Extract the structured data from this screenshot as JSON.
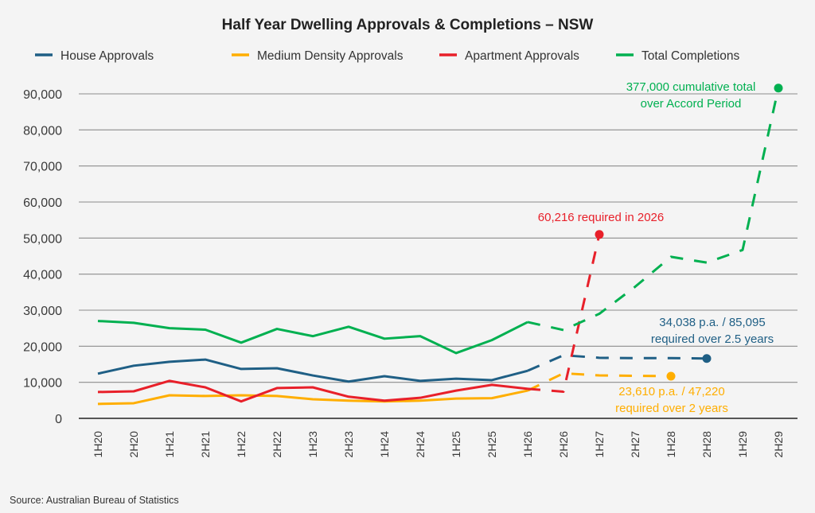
{
  "chart_data": {
    "type": "line",
    "title": "Half Year Dwelling Approvals & Completions – NSW",
    "xlabel": "",
    "ylabel": "",
    "ylim": [
      0,
      90000
    ],
    "yticks": [
      0,
      10000,
      20000,
      30000,
      40000,
      50000,
      60000,
      70000,
      80000,
      90000
    ],
    "ytick_labels": [
      "0",
      "10,000",
      "20,000",
      "30,000",
      "40,000",
      "50,000",
      "60,000",
      "70,000",
      "80,000",
      "90,000"
    ],
    "grid": true,
    "legend_position": "top",
    "categories": [
      "1H20",
      "2H20",
      "1H21",
      "2H21",
      "1H22",
      "2H22",
      "1H23",
      "2H23",
      "1H24",
      "2H24",
      "1H25",
      "2H25",
      "1H26",
      "2H26",
      "1H27",
      "2H27",
      "1H28",
      "2H28",
      "1H29",
      "2H29"
    ],
    "series": [
      {
        "name": "House Approvals",
        "color": "#1f5f85",
        "values": [
          12400,
          14600,
          15700,
          16300,
          13700,
          13900,
          11900,
          10200,
          11700,
          10400,
          11000,
          10600,
          13200
        ],
        "projection": {
          "start_index": 12,
          "values": [
            13200,
            17500,
            16800,
            16700,
            16700,
            16600
          ],
          "end_marker": true
        }
      },
      {
        "name": "Medium Density Approvals",
        "color": "#ffae00",
        "values": [
          4000,
          4200,
          6400,
          6200,
          6400,
          6200,
          5300,
          4900,
          4700,
          4900,
          5500,
          5600,
          7700
        ],
        "projection": {
          "start_index": 12,
          "values": [
            7700,
            12500,
            11900,
            11800,
            11700
          ],
          "end_marker": true
        }
      },
      {
        "name": "Apartment Approvals",
        "color": "#e8202a",
        "values": [
          7300,
          7500,
          10400,
          8600,
          4700,
          8400,
          8600,
          6000,
          4900,
          5700,
          7700,
          9300,
          8200
        ],
        "projection": {
          "start_index": 12,
          "values": [
            8200,
            7400,
            51000
          ],
          "end_marker": true
        }
      },
      {
        "name": "Total Completions",
        "color": "#00b050",
        "values": [
          27000,
          26500,
          25000,
          24600,
          21000,
          24800,
          22800,
          25400,
          22100,
          22800,
          18100,
          21700,
          26700
        ],
        "projection": {
          "start_index": 12,
          "values": [
            26700,
            24500,
            29000,
            36500,
            44800,
            43200,
            46700,
            91600
          ],
          "end_marker": true
        }
      }
    ],
    "annotations": [
      {
        "lines": [
          "377,000 cumulative total",
          "over Accord Period"
        ],
        "series": "Total Completions",
        "color": "#00b050"
      },
      {
        "lines": [
          "60,216 required in 2026"
        ],
        "series": "Apartment Approvals",
        "color": "#e8202a"
      },
      {
        "lines": [
          "34,038 p.a. / 85,095",
          "required over 2.5 years"
        ],
        "series": "House Approvals",
        "color": "#1f5f85"
      },
      {
        "lines": [
          "23,610 p.a. / 47,220",
          "required over 2 years"
        ],
        "series": "Medium Density Approvals",
        "color": "#ffae00"
      }
    ],
    "source": "Source: Australian Bureau of Statistics"
  },
  "colors": {
    "background": "#f4f4f4",
    "grid": "#8c8c8c",
    "axis": "#222222"
  }
}
